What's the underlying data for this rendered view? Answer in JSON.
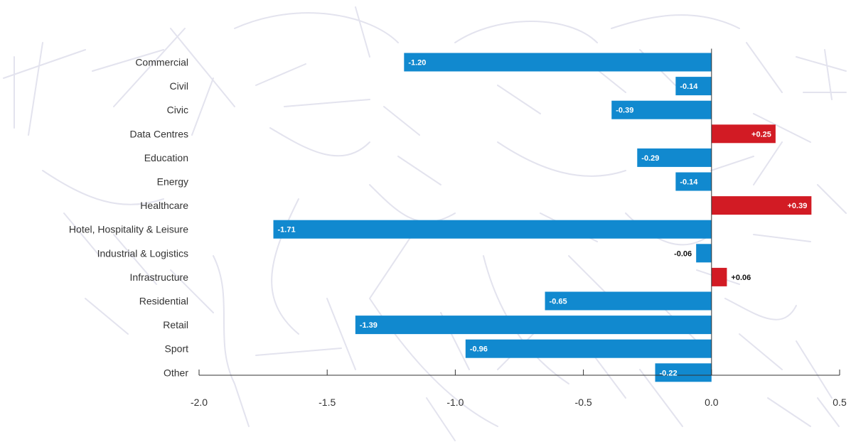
{
  "chart_data": {
    "type": "bar",
    "orientation": "horizontal",
    "title": "",
    "xlabel": "",
    "ylabel": "",
    "categories": [
      "Commercial",
      "Civil",
      "Civic",
      "Data Centres",
      "Education",
      "Energy",
      "Healthcare",
      "Hotel, Hospitality & Leisure",
      "Industrial & Logistics",
      "Infrastructure",
      "Residential",
      "Retail",
      "Sport",
      "Other"
    ],
    "values": [
      -1.2,
      -0.14,
      -0.39,
      0.25,
      -0.29,
      -0.14,
      0.39,
      -1.71,
      -0.06,
      0.06,
      -0.65,
      -1.39,
      -0.96,
      -0.22
    ],
    "value_labels": [
      "-1.20",
      "-0.14",
      "-0.39",
      "+0.25",
      "-0.29",
      "-0.14",
      "+0.39",
      "-1.71",
      "-0.06",
      "+0.06",
      "-0.65",
      "-1.39",
      "-0.96",
      "-0.22"
    ],
    "xlim": [
      -2.0,
      0.5
    ],
    "xticks": [
      -2.0,
      -1.5,
      -1.0,
      -0.5,
      0.0,
      0.5
    ],
    "xtick_labels": [
      "-2.0",
      "-1.5",
      "-1.0",
      "-0.5",
      "0.0",
      "0.5"
    ],
    "grid": false,
    "legend": "none",
    "colors": {
      "negative": "#1189cf",
      "positive": "#d21b24",
      "axis": "#333333",
      "text": "#333333",
      "background_map": "#e3e3ee"
    }
  }
}
